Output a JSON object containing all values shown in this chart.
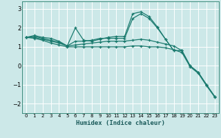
{
  "title": "",
  "xlabel": "Humidex (Indice chaleur)",
  "xlim": [
    -0.5,
    23.5
  ],
  "ylim": [
    -2.5,
    3.4
  ],
  "yticks": [
    -2,
    -1,
    0,
    1,
    2,
    3
  ],
  "xticks": [
    0,
    1,
    2,
    3,
    4,
    5,
    6,
    7,
    8,
    9,
    10,
    11,
    12,
    13,
    14,
    15,
    16,
    17,
    18,
    19,
    20,
    21,
    22,
    23
  ],
  "bg_color": "#cce8e8",
  "line_color": "#1a7a6e",
  "grid_color": "#ffffff",
  "curves": [
    [
      1.5,
      1.6,
      1.5,
      1.45,
      1.3,
      1.05,
      2.0,
      1.35,
      1.3,
      1.4,
      1.5,
      1.55,
      1.55,
      2.75,
      2.85,
      2.6,
      2.05,
      1.4,
      0.8,
      0.8,
      null,
      null,
      null,
      null
    ],
    [
      1.5,
      1.55,
      1.45,
      1.35,
      1.25,
      1.05,
      1.3,
      1.3,
      1.35,
      1.45,
      1.45,
      1.45,
      1.45,
      2.5,
      2.75,
      2.5,
      2.0,
      1.4,
      0.8,
      0.8,
      0.0,
      -0.35,
      -1.0,
      -1.62
    ],
    [
      1.5,
      1.5,
      1.4,
      1.3,
      1.2,
      1.05,
      1.1,
      1.15,
      1.2,
      1.25,
      1.3,
      1.3,
      1.3,
      1.35,
      1.4,
      1.35,
      1.25,
      1.15,
      1.05,
      0.8,
      0.0,
      -0.35,
      -1.0,
      -1.62
    ],
    [
      1.5,
      1.45,
      1.35,
      1.2,
      1.1,
      1.0,
      1.0,
      1.0,
      1.0,
      1.0,
      1.0,
      1.0,
      1.0,
      1.05,
      1.05,
      1.0,
      1.0,
      0.95,
      0.85,
      0.7,
      -0.05,
      -0.4,
      -1.05,
      -1.65
    ]
  ]
}
